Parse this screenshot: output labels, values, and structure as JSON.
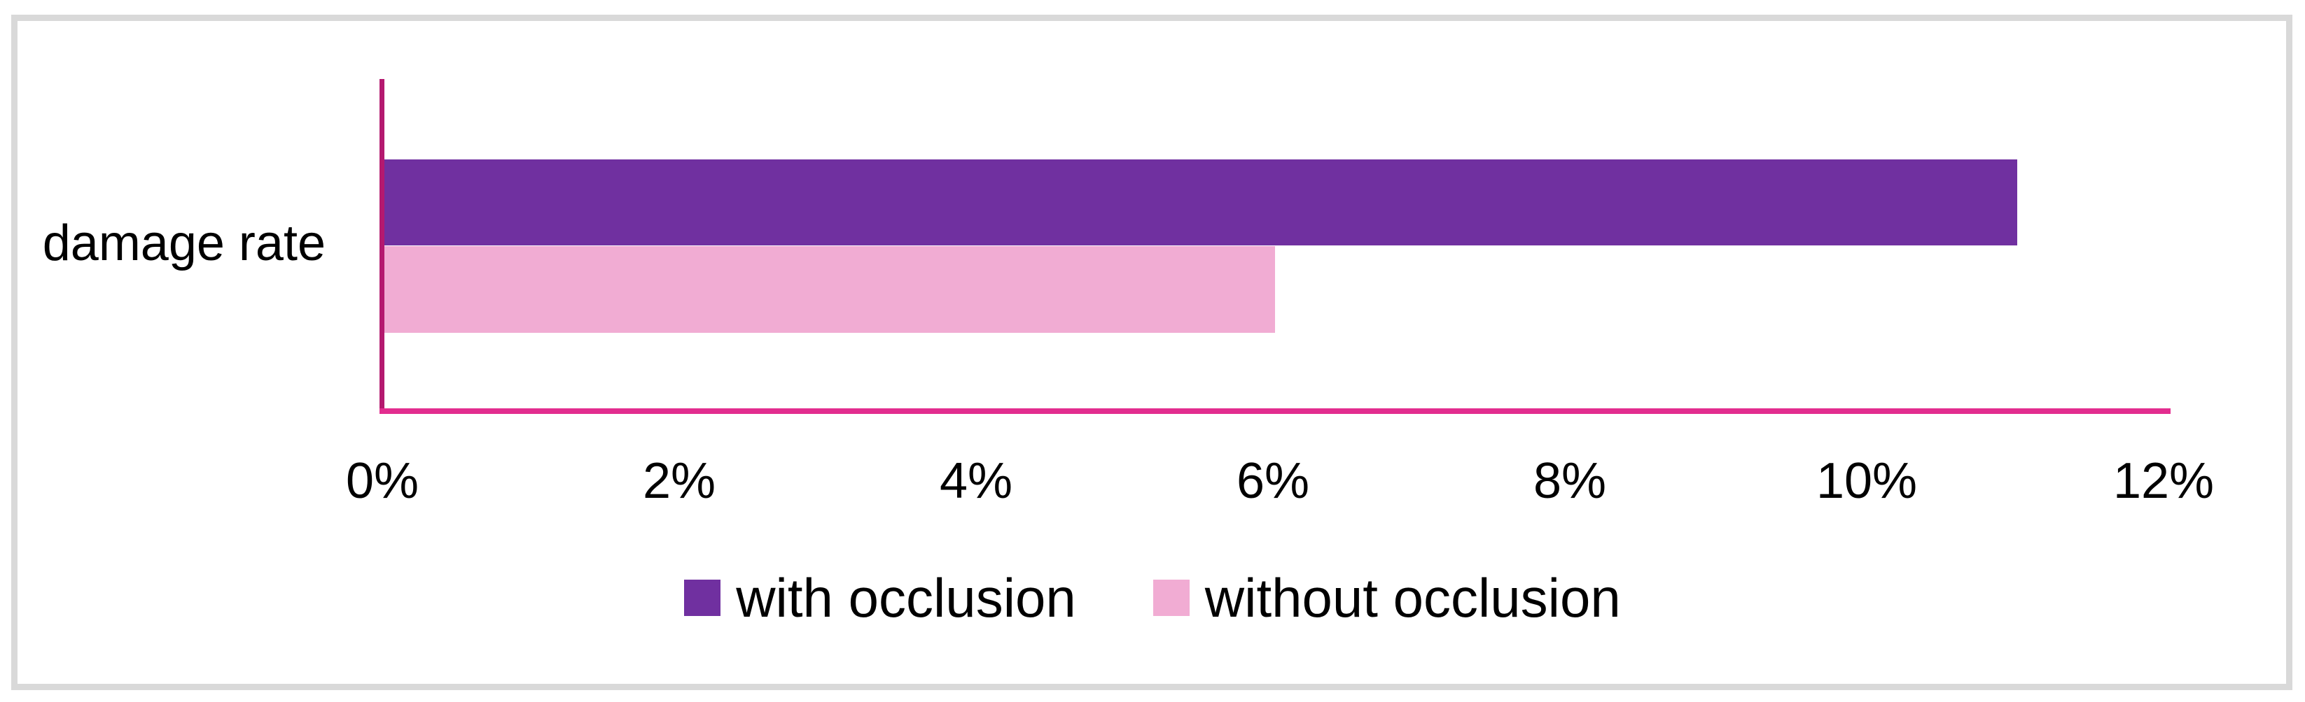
{
  "chart_data": {
    "type": "bar",
    "orientation": "horizontal",
    "title": "",
    "categories": [
      "damage rate"
    ],
    "series": [
      {
        "name": "with occlusion",
        "values": [
          11
        ],
        "color": "#7030A0"
      },
      {
        "name": "without occlusion",
        "values": [
          6
        ],
        "color": "#F1ACD3"
      }
    ],
    "x_ticks": [
      "0%",
      "2%",
      "4%",
      "6%",
      "8%",
      "10%",
      "12%"
    ],
    "xlim": [
      0,
      12
    ],
    "xlabel": "",
    "ylabel": "",
    "grid": false,
    "legend_position": "bottom",
    "value_format": "percent"
  },
  "colors": {
    "y_axis_line": "#B4196F",
    "x_axis_line": "#E22D8F",
    "chart_border": "#D9D9D9",
    "text": "#000000",
    "background": "#FFFFFF"
  }
}
